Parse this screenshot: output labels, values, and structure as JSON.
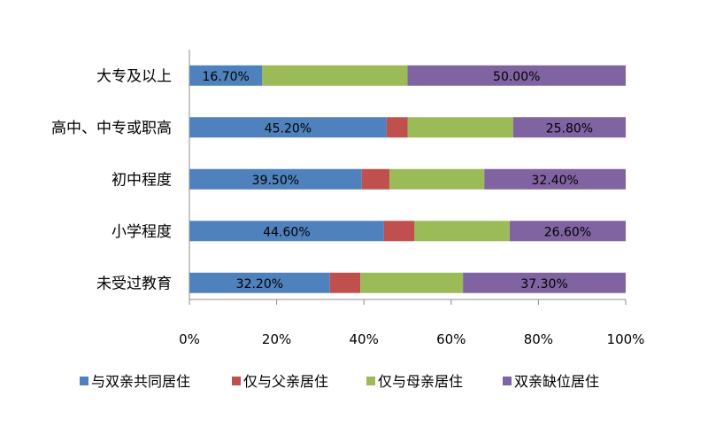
{
  "chart_data": {
    "type": "bar",
    "orientation": "horizontal",
    "stacked": "percent",
    "categories": [
      "大专及以上",
      "高中、中专或职高",
      "初中程度",
      "小学程度",
      "未受过教育"
    ],
    "series": [
      {
        "name": "与双亲共同居住",
        "color": "#4F81BD",
        "values": [
          16.7,
          45.2,
          39.5,
          44.6,
          32.2
        ],
        "labels": [
          "16.70%",
          "45.20%",
          "39.50%",
          "44.60%",
          "32.20%"
        ]
      },
      {
        "name": "仅与父亲居住",
        "color": "#C0504D",
        "values": [
          0.0,
          4.8,
          6.4,
          7.0,
          7.0
        ],
        "labels": [
          "",
          "",
          "",
          "",
          ""
        ]
      },
      {
        "name": "仅与母亲居住",
        "color": "#9BBB59",
        "values": [
          33.3,
          24.2,
          21.7,
          21.8,
          23.5
        ],
        "labels": [
          "",
          "",
          "",
          "",
          ""
        ]
      },
      {
        "name": "双亲缺位居住",
        "color": "#8064A2",
        "values": [
          50.0,
          25.8,
          32.4,
          26.6,
          37.3
        ],
        "labels": [
          "50.00%",
          "25.80%",
          "32.40%",
          "26.60%",
          "37.30%"
        ]
      }
    ],
    "xlim": [
      0,
      100
    ],
    "x_ticks": [
      "0%",
      "20%",
      "40%",
      "60%",
      "80%",
      "100%"
    ],
    "grid": false,
    "legend_position": "bottom"
  }
}
